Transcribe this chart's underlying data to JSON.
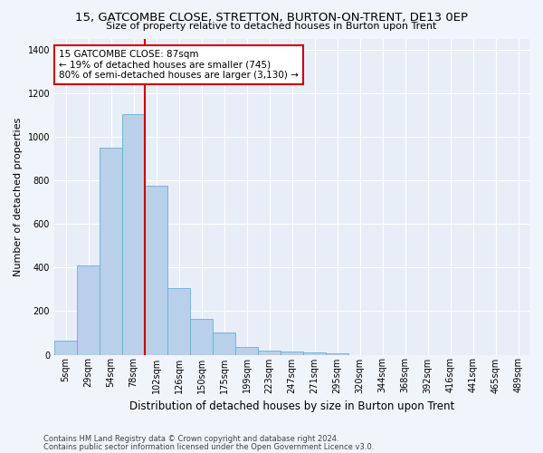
{
  "title": "15, GATCOMBE CLOSE, STRETTON, BURTON-ON-TRENT, DE13 0EP",
  "subtitle": "Size of property relative to detached houses in Burton upon Trent",
  "xlabel": "Distribution of detached houses by size in Burton upon Trent",
  "ylabel": "Number of detached properties",
  "footer1": "Contains HM Land Registry data © Crown copyright and database right 2024.",
  "footer2": "Contains public sector information licensed under the Open Government Licence v3.0.",
  "bar_labels": [
    "5sqm",
    "29sqm",
    "54sqm",
    "78sqm",
    "102sqm",
    "126sqm",
    "150sqm",
    "175sqm",
    "199sqm",
    "223sqm",
    "247sqm",
    "271sqm",
    "295sqm",
    "320sqm",
    "344sqm",
    "368sqm",
    "392sqm",
    "416sqm",
    "441sqm",
    "465sqm",
    "489sqm"
  ],
  "bar_values": [
    65,
    410,
    950,
    1105,
    775,
    305,
    165,
    100,
    35,
    18,
    15,
    12,
    5,
    0,
    0,
    0,
    0,
    0,
    0,
    0,
    0
  ],
  "bar_color": "#b8d0ea",
  "bar_edge_color": "#6aaed6",
  "ylim": [
    0,
    1450
  ],
  "yticks": [
    0,
    200,
    400,
    600,
    800,
    1000,
    1200,
    1400
  ],
  "annotation_text": "15 GATCOMBE CLOSE: 87sqm\n← 19% of detached houses are smaller (745)\n80% of semi-detached houses are larger (3,130) →",
  "vline_color": "#cc0000",
  "annotation_box_facecolor": "#ffffff",
  "annotation_box_edgecolor": "#cc0000",
  "bg_color": "#f0f4fb",
  "ax_bg_color": "#e8eef7",
  "grid_color": "#ffffff",
  "title_fontsize": 9.5,
  "subtitle_fontsize": 8,
  "ylabel_fontsize": 8,
  "xlabel_fontsize": 8.5,
  "tick_fontsize": 7,
  "footer_fontsize": 6
}
